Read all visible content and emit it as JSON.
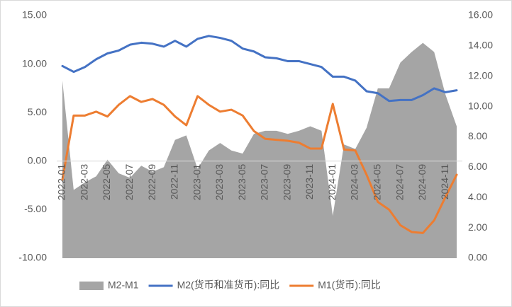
{
  "chart_data": {
    "type": "combo",
    "categories": [
      "2022-01",
      null,
      "2022-03",
      null,
      "2022-05",
      null,
      "2022-07",
      null,
      "2022-09",
      null,
      "2022-11",
      null,
      "2023-01",
      null,
      "2023-03",
      null,
      "2023-05",
      null,
      "2023-07",
      null,
      "2023-09",
      null,
      "2023-11",
      null,
      "2024-01",
      null,
      "2024-03",
      null,
      "2024-05",
      null,
      "2024-07",
      null,
      "2024-09",
      null,
      "2024-11",
      null
    ],
    "series": [
      {
        "name": "M2-M1",
        "type": "area",
        "axis": "y2",
        "color": "#a5a5a5",
        "values": [
          11.7,
          4.5,
          5.0,
          5.4,
          6.5,
          5.6,
          5.3,
          6.1,
          5.7,
          6.0,
          7.8,
          8.1,
          5.9,
          7.1,
          7.6,
          7.1,
          6.9,
          8.2,
          8.4,
          8.4,
          8.2,
          8.4,
          8.7,
          8.4,
          2.8,
          7.5,
          7.2,
          8.6,
          11.2,
          11.2,
          12.9,
          13.6,
          14.2,
          13.6,
          10.8,
          8.7
        ]
      },
      {
        "name": "M2(货币和准货币):同比",
        "type": "line",
        "color": "#4472c4",
        "values": [
          9.8,
          9.2,
          9.7,
          10.5,
          11.1,
          11.4,
          12.0,
          12.2,
          12.1,
          11.8,
          12.4,
          11.8,
          12.6,
          12.9,
          12.7,
          12.4,
          11.6,
          11.3,
          10.7,
          10.6,
          10.3,
          10.3,
          10.0,
          9.7,
          8.7,
          8.7,
          8.3,
          7.2,
          7.0,
          6.2,
          6.3,
          6.3,
          6.8,
          7.5,
          7.1,
          7.3
        ]
      },
      {
        "name": "M1(货币):同比",
        "type": "line",
        "color": "#ed7d31",
        "values": [
          -1.9,
          4.7,
          4.7,
          5.1,
          4.6,
          5.8,
          6.7,
          6.1,
          6.4,
          5.8,
          4.6,
          3.7,
          6.7,
          5.8,
          5.1,
          5.3,
          4.7,
          3.1,
          2.3,
          2.2,
          2.1,
          1.9,
          1.3,
          1.3,
          5.9,
          1.2,
          1.1,
          -1.4,
          -4.2,
          -5.0,
          -6.6,
          -7.3,
          -7.4,
          -6.1,
          -3.7,
          -1.4
        ]
      }
    ],
    "ylim": [
      -10,
      15
    ],
    "yticks": [
      {
        "value": -10,
        "label": "-10.00"
      },
      {
        "value": -5,
        "label": "-5.00"
      },
      {
        "value": 0,
        "label": "0.00"
      },
      {
        "value": 5,
        "label": "5.00"
      },
      {
        "value": 10,
        "label": "10.00"
      },
      {
        "value": 15,
        "label": "15.00"
      }
    ],
    "y2lim": [
      0,
      16
    ],
    "y2ticks": [
      {
        "value": 0,
        "label": "0.00"
      },
      {
        "value": 2,
        "label": "2.00"
      },
      {
        "value": 4,
        "label": "4.00"
      },
      {
        "value": 6,
        "label": "6.00"
      },
      {
        "value": 8,
        "label": "8.00"
      },
      {
        "value": 10,
        "label": "10.00"
      },
      {
        "value": 12,
        "label": "12.00"
      },
      {
        "value": 14,
        "label": "14.00"
      },
      {
        "value": 16,
        "label": "16.00"
      }
    ],
    "legend": "bottom"
  }
}
